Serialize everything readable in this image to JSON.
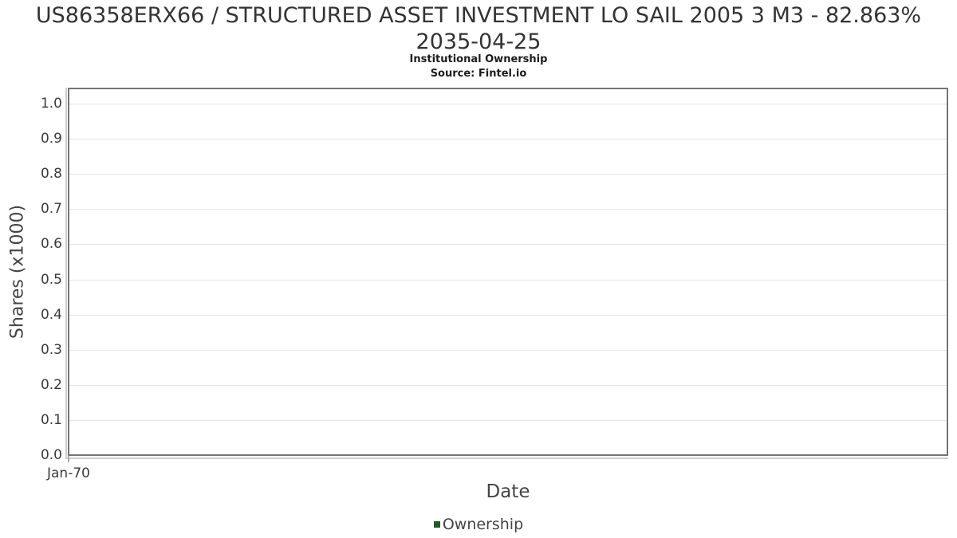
{
  "header": {
    "title_line1": "US86358ERX66 / STRUCTURED ASSET INVESTMENT LO SAIL 2005 3 M3 - 82.863%",
    "title_line2": "2035-04-25",
    "subtitle": "Institutional Ownership",
    "source": "Source: Fintel.io"
  },
  "chart_data": {
    "type": "line",
    "title": "US86358ERX66 / STRUCTURED ASSET INVESTMENT LO SAIL 2005 3 M3 - 82.863% 2035-04-25",
    "subtitle": "Institutional Ownership",
    "source": "Source: Fintel.io",
    "xlabel": "Date",
    "ylabel": "Shares (x1000)",
    "x_axis": {
      "ticks": [
        "Jan-70"
      ]
    },
    "y_axis": {
      "ticks": [
        {
          "label": "0.0",
          "value": 0.0
        },
        {
          "label": "0.1",
          "value": 0.1
        },
        {
          "label": "0.2",
          "value": 0.2
        },
        {
          "label": "0.3",
          "value": 0.3
        },
        {
          "label": "0.4",
          "value": 0.4
        },
        {
          "label": "0.5",
          "value": 0.5
        },
        {
          "label": "0.6",
          "value": 0.6
        },
        {
          "label": "0.7",
          "value": 0.7
        },
        {
          "label": "0.8",
          "value": 0.8
        },
        {
          "label": "0.9",
          "value": 0.9
        },
        {
          "label": "1.0",
          "value": 1.0
        }
      ],
      "range": [
        0,
        1.05
      ]
    },
    "grid": true,
    "legend": {
      "position": "bottom",
      "entries": [
        {
          "label": "Ownership",
          "color": "#27562b"
        }
      ]
    },
    "series": [
      {
        "name": "Ownership",
        "x": [],
        "values": []
      }
    ]
  },
  "colors": {
    "background": "#ffffff",
    "title_text": "#333333",
    "subtitle_text": "#1c1c1c",
    "axis_tick_text": "#3b3b3b",
    "axis_label_text": "#444444",
    "plot_border": "#757575",
    "gridline": "#e5e5e5",
    "tick_line": "#cfcfcf",
    "legend_swatch": "#27562b"
  }
}
